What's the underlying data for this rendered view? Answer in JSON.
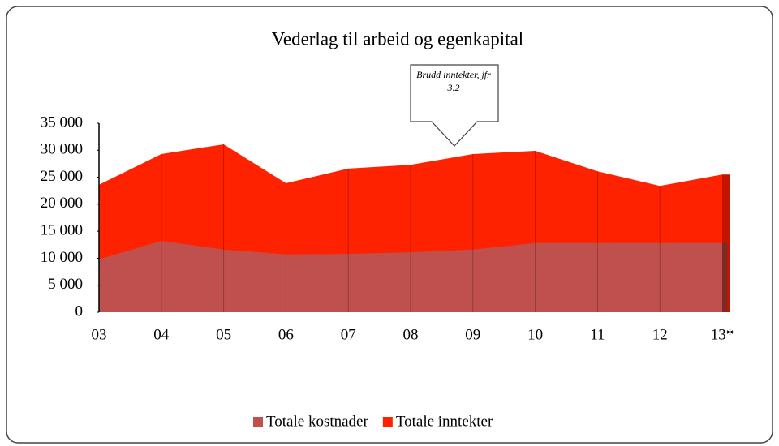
{
  "chart_data": {
    "type": "area",
    "title": "Vederlag til arbeid og egenkapital",
    "annotation": "Brudd inntekter, jfr 3.2",
    "categories": [
      "03",
      "04",
      "05",
      "06",
      "07",
      "08",
      "09",
      "10",
      "11",
      "12",
      "13*"
    ],
    "series": [
      {
        "name": "Totale inntekter",
        "color": "#ff2200",
        "values": [
          23600,
          29300,
          31100,
          23900,
          26600,
          27300,
          29300,
          29900,
          26100,
          23400,
          25500
        ]
      },
      {
        "name": "Totale kostnader",
        "color": "#c0504d",
        "values": [
          9800,
          13200,
          11600,
          10700,
          10800,
          11100,
          11600,
          12800,
          12800,
          12800,
          12800
        ]
      }
    ],
    "legend_order": [
      1,
      0
    ],
    "ylim": [
      0,
      35000
    ],
    "yticks": [
      0,
      {
        "value": 5000,
        "label": "5 000"
      },
      {
        "value": 10000,
        "label": "10 000"
      },
      {
        "value": 15000,
        "label": "15 000"
      },
      {
        "value": 20000,
        "label": "20 000"
      },
      {
        "value": 25000,
        "label": "25 000"
      },
      {
        "value": 30000,
        "label": "30 000"
      },
      {
        "value": 35000,
        "label": "35 000"
      }
    ]
  }
}
